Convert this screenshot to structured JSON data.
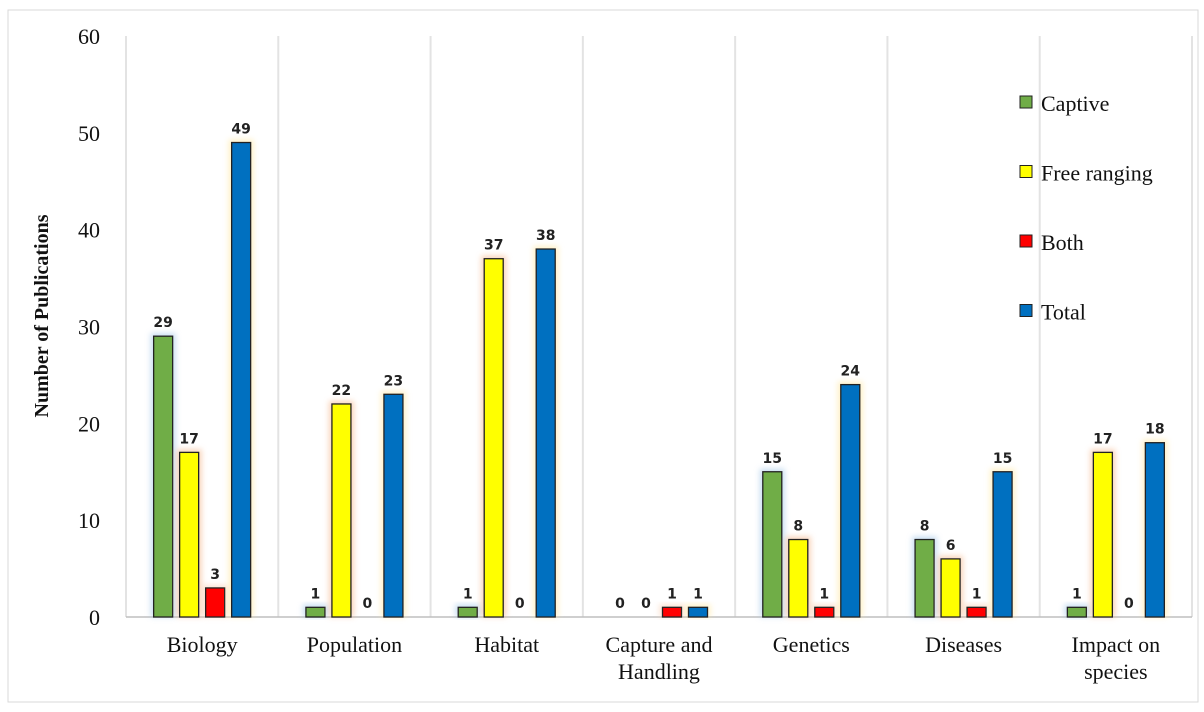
{
  "chart_data": {
    "type": "bar",
    "title": "",
    "xlabel": "",
    "ylabel": "Number of Publications",
    "ylim": [
      0,
      60
    ],
    "yticks": [
      0,
      10,
      20,
      30,
      40,
      50,
      60
    ],
    "grid": "vertical-separators",
    "legend_position": "right",
    "categories": [
      [
        "Biology"
      ],
      [
        "Population"
      ],
      [
        "Habitat"
      ],
      [
        "Capture and",
        "Handling"
      ],
      [
        "Genetics"
      ],
      [
        "Diseases"
      ],
      [
        "Impact on",
        "species"
      ]
    ],
    "series": [
      {
        "name": "Captive",
        "color": "#70ad47",
        "glow": "#9dc3e6",
        "values": [
          29,
          1,
          1,
          0,
          15,
          8,
          1
        ]
      },
      {
        "name": "Free ranging",
        "color": "#ffff00",
        "glow": "#f4b183",
        "values": [
          17,
          22,
          37,
          0,
          8,
          6,
          17
        ]
      },
      {
        "name": "Both",
        "color": "#ff0000",
        "glow": "#f8cbad",
        "values": [
          3,
          0,
          0,
          1,
          1,
          1,
          0
        ]
      },
      {
        "name": "Total",
        "color": "#0070c0",
        "glow": "#ffe699",
        "values": [
          49,
          23,
          38,
          1,
          24,
          15,
          18
        ]
      }
    ]
  }
}
